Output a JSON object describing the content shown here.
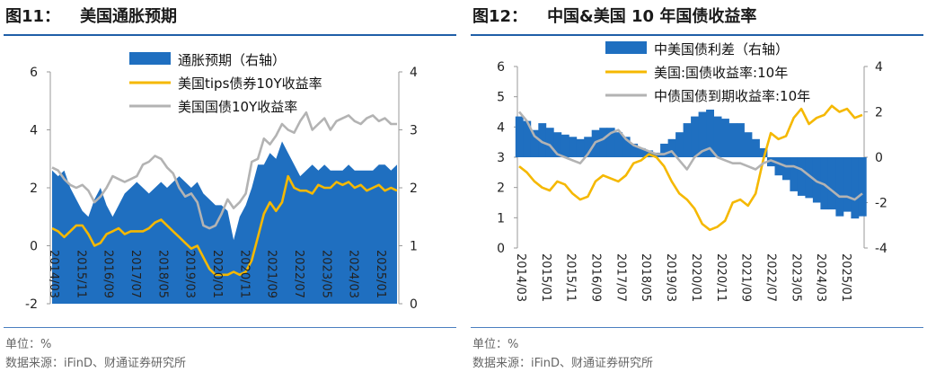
{
  "charts": [
    {
      "title_num": "图11：",
      "title_text": "美国通胀预期",
      "unit_note": "单位：%",
      "source_note": "数据来源：iFinD、财通证券研究所"
    },
    {
      "title_num": "图12：",
      "title_text": "中国&美国 10 年国债收益率",
      "unit_note": "单位：%",
      "source_note": "数据来源：iFinD、财通证券研究所"
    }
  ],
  "chart_data": [
    {
      "type": "line",
      "x_tick_labels": [
        "2014/03",
        "2015/11",
        "2016/09",
        "2017/07",
        "2018/05",
        "2019/03",
        "2020/01",
        "2020/11",
        "2021/09",
        "2022/07",
        "2023/05",
        "2024/03",
        "2025/01"
      ],
      "ylim_left": [
        -2,
        6
      ],
      "yticks_left": [
        "-2",
        "0",
        "2",
        "4",
        "6"
      ],
      "ylim_right": [
        0,
        4
      ],
      "yticks_right": [
        "0",
        "1",
        "2",
        "3",
        "4"
      ],
      "colors": {
        "inflation": "#1f6fc0",
        "tips": "#f5b800",
        "treasury": "#b3b3b3"
      },
      "series": [
        {
          "name": "通胀预期（右轴）",
          "kind": "area",
          "axis": "right",
          "values": [
            2.3,
            2.2,
            2.3,
            2.0,
            1.8,
            1.6,
            1.5,
            1.8,
            2.0,
            1.7,
            1.5,
            1.7,
            1.9,
            2.0,
            2.1,
            2.0,
            1.9,
            2.0,
            2.1,
            2.0,
            2.1,
            2.2,
            2.1,
            2.0,
            2.1,
            1.9,
            1.8,
            1.7,
            1.7,
            1.6,
            1.1,
            1.5,
            1.7,
            2.0,
            2.4,
            2.4,
            2.6,
            2.5,
            2.8,
            2.6,
            2.4,
            2.2,
            2.3,
            2.4,
            2.3,
            2.4,
            2.3,
            2.3,
            2.3,
            2.4,
            2.3,
            2.3,
            2.3,
            2.3,
            2.4,
            2.4,
            2.3,
            2.4
          ]
        },
        {
          "name": "美国tips债券10Y收益率",
          "kind": "line",
          "axis": "left",
          "values": [
            0.6,
            0.5,
            0.3,
            0.5,
            0.7,
            0.7,
            0.4,
            0.0,
            0.1,
            0.4,
            0.5,
            0.6,
            0.4,
            0.5,
            0.5,
            0.5,
            0.6,
            0.8,
            0.9,
            0.7,
            0.5,
            0.3,
            0.1,
            -0.1,
            0.0,
            -0.4,
            -0.8,
            -1.0,
            -1.0,
            -1.0,
            -0.9,
            -1.0,
            -0.9,
            -0.5,
            0.3,
            1.1,
            1.5,
            1.2,
            1.5,
            2.4,
            2.0,
            1.9,
            1.9,
            1.8,
            2.1,
            2.0,
            2.0,
            2.2,
            2.1,
            2.2,
            2.0,
            2.1,
            1.9,
            2.0,
            2.1,
            1.9,
            2.0,
            1.9
          ]
        },
        {
          "name": "美国国债10Y收益率",
          "kind": "line",
          "axis": "left",
          "values": [
            2.7,
            2.6,
            2.3,
            2.1,
            2.0,
            2.1,
            1.9,
            1.5,
            1.7,
            2.0,
            2.4,
            2.3,
            2.2,
            2.3,
            2.4,
            2.8,
            2.9,
            3.1,
            3.0,
            2.7,
            2.5,
            2.0,
            1.7,
            1.8,
            1.5,
            0.7,
            0.6,
            0.7,
            1.1,
            1.6,
            1.3,
            1.5,
            1.8,
            2.9,
            3.0,
            3.7,
            3.5,
            3.8,
            4.2,
            4.0,
            3.9,
            4.3,
            4.6,
            4.0,
            4.2,
            4.4,
            4.0,
            4.3,
            4.4,
            4.5,
            4.3,
            4.2,
            4.4,
            4.5,
            4.3,
            4.4,
            4.2,
            4.2
          ]
        }
      ],
      "legend": [
        "通胀预期（右轴）",
        "美国tips债券10Y收益率",
        "美国国债10Y收益率"
      ]
    },
    {
      "type": "line",
      "x_tick_labels": [
        "2014/03",
        "2015/01",
        "2015/11",
        "2016/09",
        "2017/07",
        "2018/05",
        "2019/03",
        "2020/01",
        "2020/11",
        "2021/09",
        "2022/07",
        "2023/05",
        "2024/03",
        "2025/01"
      ],
      "ylim_left": [
        0,
        6
      ],
      "yticks_left": [
        "0",
        "1",
        "2",
        "3",
        "4",
        "5",
        "6"
      ],
      "ylim_right": [
        -4,
        4
      ],
      "yticks_right": [
        "-4",
        "-2",
        "0",
        "2",
        "4"
      ],
      "colors": {
        "spread": "#1f6fc0",
        "us": "#f5b800",
        "cn": "#b3b3b3"
      },
      "series": [
        {
          "name": "中美国债利差（右轴）",
          "kind": "bar",
          "axis": "right",
          "values": [
            1.8,
            1.6,
            1.2,
            1.5,
            1.3,
            1.1,
            1.0,
            0.9,
            0.8,
            0.9,
            1.2,
            1.3,
            1.3,
            1.1,
            0.9,
            0.6,
            0.4,
            0.3,
            0.2,
            0.6,
            0.8,
            1.1,
            1.5,
            1.8,
            2.0,
            2.1,
            1.8,
            1.7,
            1.5,
            1.5,
            1.1,
            0.8,
            0.4,
            -0.4,
            -0.8,
            -1.0,
            -1.5,
            -1.7,
            -1.8,
            -2.0,
            -2.3,
            -2.3,
            -2.6,
            -2.4,
            -2.7,
            -2.6
          ]
        },
        {
          "name": "美国:国债收益率:10年",
          "kind": "line",
          "axis": "left",
          "values": [
            2.7,
            2.5,
            2.2,
            2.0,
            1.9,
            2.2,
            2.1,
            1.8,
            1.6,
            1.7,
            2.2,
            2.4,
            2.3,
            2.2,
            2.4,
            2.8,
            2.9,
            3.1,
            3.0,
            2.7,
            2.2,
            1.8,
            1.6,
            1.3,
            0.8,
            0.6,
            0.7,
            0.9,
            1.5,
            1.6,
            1.4,
            1.8,
            2.9,
            3.8,
            3.6,
            3.7,
            4.3,
            4.6,
            4.1,
            4.3,
            4.4,
            4.7,
            4.5,
            4.6,
            4.3,
            4.4
          ]
        },
        {
          "name": "中债国债到期收益率:10年",
          "kind": "line",
          "axis": "left",
          "values": [
            4.5,
            4.2,
            3.7,
            3.5,
            3.4,
            3.1,
            3.0,
            2.9,
            2.8,
            3.1,
            3.5,
            3.6,
            3.8,
            3.9,
            3.6,
            3.4,
            3.3,
            3.2,
            3.1,
            3.1,
            3.2,
            2.9,
            2.6,
            3.0,
            3.2,
            3.3,
            3.0,
            2.9,
            2.8,
            2.8,
            2.7,
            2.6,
            2.8,
            2.9,
            2.8,
            2.7,
            2.7,
            2.6,
            2.4,
            2.2,
            2.1,
            1.9,
            1.7,
            1.7,
            1.6,
            1.8
          ]
        }
      ],
      "legend": [
        "中美国债利差（右轴）",
        "美国:国债收益率:10年",
        "中债国债到期收益率:10年"
      ]
    }
  ]
}
